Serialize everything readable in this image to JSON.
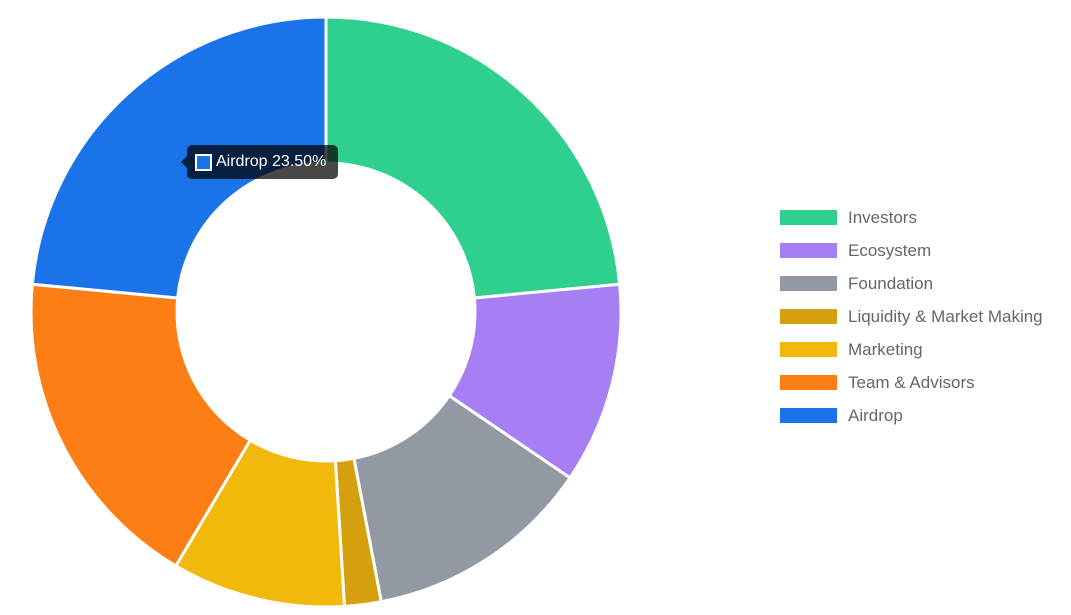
{
  "chart_data": {
    "type": "pie",
    "variant": "doughnut",
    "legend_position": "right",
    "categories": [
      "Investors",
      "Ecosystem",
      "Foundation",
      "Liquidity & Market Making",
      "Marketing",
      "Team & Advisors",
      "Airdrop"
    ],
    "values": [
      23.5,
      11.0,
      12.5,
      2.0,
      9.5,
      18.0,
      23.5
    ],
    "colors": [
      "#2fd08e",
      "#a67ff5",
      "#9299a3",
      "#d4a00d",
      "#f0b90b",
      "#fd7e14",
      "#1a73e8"
    ],
    "tooltip": {
      "label": "Airdrop",
      "value": "23.50%",
      "color": "#1a73e8"
    }
  }
}
